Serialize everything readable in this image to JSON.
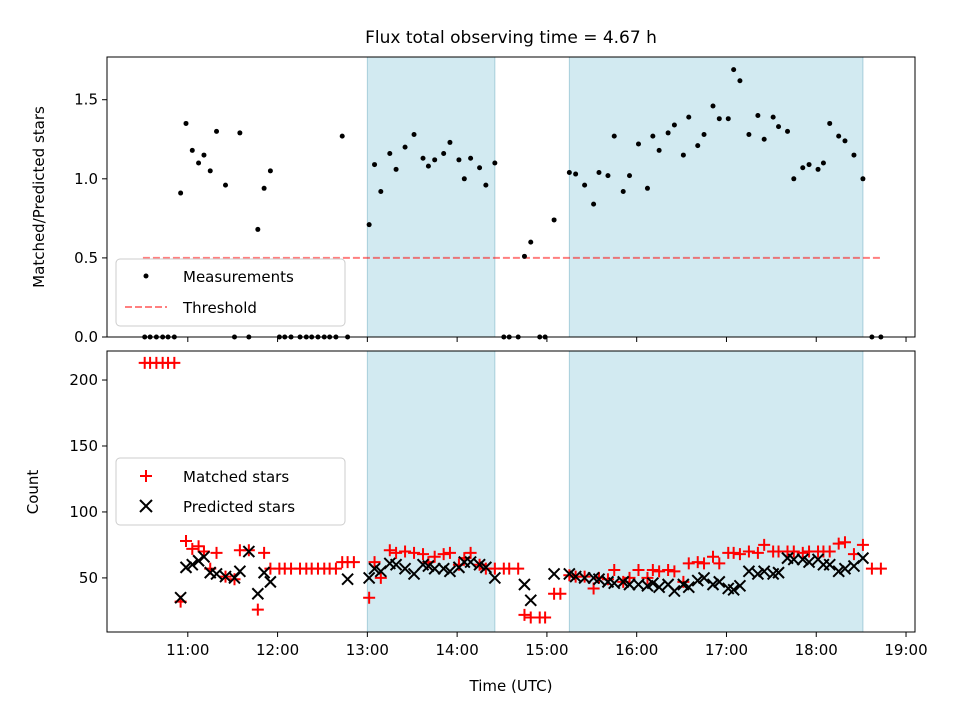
{
  "figure": {
    "title": "Flux total observing time = 4.67 h"
  },
  "colors": {
    "shade": "#add8e6",
    "measurement": "#000000",
    "threshold": "#ff0000",
    "matched": "#ff0000",
    "predicted": "#000000"
  },
  "chart_data": [
    {
      "type": "scatter",
      "panel": "top",
      "title": "Flux total observing time = 4.67 h",
      "xlabel": "",
      "ylabel": "Matched/Predicted stars",
      "xlim": [
        10.1,
        19.1
      ],
      "ylim": [
        0,
        1.77
      ],
      "yticks": [
        0.0,
        0.5,
        1.0,
        1.5
      ],
      "ytick_labels": [
        "0.0",
        "0.5",
        "1.0",
        "1.5"
      ],
      "xticks": [
        11,
        12,
        13,
        14,
        15,
        16,
        17,
        18,
        19
      ],
      "grid": false,
      "legend": {
        "position": "lower-left",
        "entries": [
          "Measurements",
          "Threshold"
        ]
      },
      "shaded_spans": [
        [
          13.0,
          14.42
        ],
        [
          15.25,
          18.52
        ]
      ],
      "threshold": {
        "name": "Threshold",
        "value": 0.5,
        "x_range": [
          10.5,
          18.72
        ]
      },
      "series": [
        {
          "name": "Measurements",
          "x": [
            10.52,
            10.58,
            10.65,
            10.72,
            10.78,
            10.85,
            10.92,
            10.98,
            11.05,
            11.12,
            11.18,
            11.25,
            11.32,
            11.42,
            11.52,
            11.58,
            11.68,
            11.78,
            11.85,
            11.92,
            12.02,
            12.08,
            12.15,
            12.25,
            12.32,
            12.38,
            12.45,
            12.52,
            12.58,
            12.65,
            12.72,
            12.78,
            13.02,
            13.08,
            13.15,
            13.25,
            13.32,
            13.42,
            13.52,
            13.62,
            13.68,
            13.75,
            13.85,
            13.92,
            14.02,
            14.08,
            14.15,
            14.25,
            14.32,
            14.42,
            14.52,
            14.58,
            14.68,
            14.75,
            14.82,
            14.92,
            14.98,
            15.08,
            15.25,
            15.32,
            15.42,
            15.52,
            15.58,
            15.68,
            15.75,
            15.85,
            15.92,
            16.02,
            16.12,
            16.18,
            16.25,
            16.35,
            16.42,
            16.52,
            16.58,
            16.68,
            16.75,
            16.85,
            16.92,
            17.02,
            17.08,
            17.15,
            17.25,
            17.35,
            17.42,
            17.52,
            17.58,
            17.68,
            17.75,
            17.85,
            17.92,
            18.02,
            18.08,
            18.15,
            18.25,
            18.32,
            18.42,
            18.52,
            18.62,
            18.72
          ],
          "y": [
            0,
            0,
            0,
            0,
            0,
            0,
            0.91,
            1.35,
            1.18,
            1.1,
            1.15,
            1.05,
            1.3,
            0.96,
            0,
            1.29,
            0,
            0.68,
            0.94,
            1.05,
            0,
            0,
            0,
            0,
            0,
            0,
            0,
            0,
            0,
            0,
            1.27,
            0,
            0.71,
            1.09,
            0.92,
            1.16,
            1.06,
            1.2,
            1.28,
            1.13,
            1.08,
            1.12,
            1.16,
            1.23,
            1.12,
            1.0,
            1.13,
            1.07,
            0.96,
            1.1,
            0,
            0,
            0,
            0.51,
            0.6,
            0,
            0,
            0.74,
            1.04,
            1.03,
            0.96,
            0.84,
            1.04,
            1.02,
            1.27,
            0.92,
            1.02,
            1.22,
            0.94,
            1.27,
            1.18,
            1.29,
            1.34,
            1.15,
            1.39,
            1.21,
            1.28,
            1.46,
            1.38,
            1.38,
            1.69,
            1.62,
            1.28,
            1.4,
            1.25,
            1.39,
            1.33,
            1.3,
            1.0,
            1.07,
            1.09,
            1.06,
            1.1,
            1.35,
            1.27,
            1.24,
            1.15,
            1.0,
            0,
            0
          ]
        }
      ]
    },
    {
      "type": "scatter",
      "panel": "bottom",
      "xlabel": "Time (UTC)",
      "ylabel": "Count",
      "xlim": [
        10.1,
        19.1
      ],
      "ylim": [
        9,
        222
      ],
      "yticks": [
        50,
        100,
        150,
        200
      ],
      "ytick_labels": [
        "50",
        "100",
        "150",
        "200"
      ],
      "xticks": [
        11,
        12,
        13,
        14,
        15,
        16,
        17,
        18,
        19
      ],
      "xtick_labels": [
        "11:00",
        "12:00",
        "13:00",
        "14:00",
        "15:00",
        "16:00",
        "17:00",
        "18:00",
        "19:00"
      ],
      "grid": false,
      "legend": {
        "position": "center-left",
        "entries": [
          "Matched stars",
          "Predicted stars"
        ]
      },
      "shaded_spans": [
        [
          13.0,
          14.42
        ],
        [
          15.25,
          18.52
        ]
      ],
      "series": [
        {
          "name": "Matched stars",
          "x": [
            10.52,
            10.58,
            10.65,
            10.72,
            10.78,
            10.85,
            10.92,
            10.98,
            11.05,
            11.12,
            11.18,
            11.25,
            11.32,
            11.42,
            11.52,
            11.58,
            11.68,
            11.78,
            11.85,
            11.92,
            12.02,
            12.08,
            12.15,
            12.25,
            12.32,
            12.38,
            12.45,
            12.52,
            12.58,
            12.65,
            12.72,
            12.78,
            12.85,
            13.02,
            13.08,
            13.15,
            13.25,
            13.32,
            13.42,
            13.52,
            13.62,
            13.68,
            13.75,
            13.85,
            13.92,
            14.02,
            14.08,
            14.15,
            14.25,
            14.32,
            14.42,
            14.52,
            14.58,
            14.68,
            14.75,
            14.82,
            14.92,
            14.98,
            15.08,
            15.15,
            15.25,
            15.32,
            15.42,
            15.52,
            15.58,
            15.68,
            15.75,
            15.85,
            15.92,
            16.02,
            16.12,
            16.18,
            16.25,
            16.35,
            16.42,
            16.52,
            16.58,
            16.68,
            16.75,
            16.85,
            16.92,
            17.02,
            17.08,
            17.15,
            17.25,
            17.35,
            17.42,
            17.52,
            17.58,
            17.68,
            17.75,
            17.85,
            17.92,
            18.02,
            18.08,
            18.15,
            18.25,
            18.32,
            18.42,
            18.52,
            18.62,
            18.72
          ],
          "y": [
            213,
            213,
            213,
            213,
            213,
            213,
            32,
            78,
            72,
            74,
            70,
            57,
            69,
            51,
            49,
            71,
            71,
            26,
            69,
            57,
            57,
            57,
            57,
            57,
            57,
            57,
            57,
            57,
            57,
            57,
            62,
            62,
            62,
            35,
            62,
            50,
            71,
            69,
            70,
            69,
            68,
            62,
            66,
            68,
            69,
            60,
            65,
            69,
            60,
            57,
            57,
            57,
            57,
            57,
            22,
            20,
            20,
            20,
            38,
            38,
            52,
            51,
            51,
            42,
            50,
            49,
            56,
            47,
            50,
            56,
            50,
            56,
            55,
            56,
            55,
            47,
            61,
            62,
            61,
            66,
            61,
            69,
            69,
            68,
            70,
            69,
            75,
            70,
            70,
            70,
            70,
            69,
            70,
            70,
            70,
            70,
            76,
            77,
            68,
            75,
            57,
            57
          ]
        },
        {
          "name": "Predicted stars",
          "x": [
            10.92,
            10.98,
            11.05,
            11.12,
            11.18,
            11.25,
            11.32,
            11.42,
            11.52,
            11.58,
            11.68,
            11.78,
            11.85,
            11.92,
            12.78,
            13.02,
            13.08,
            13.15,
            13.25,
            13.32,
            13.42,
            13.52,
            13.62,
            13.68,
            13.75,
            13.85,
            13.92,
            14.02,
            14.08,
            14.15,
            14.25,
            14.32,
            14.42,
            14.75,
            14.82,
            15.08,
            15.25,
            15.32,
            15.42,
            15.52,
            15.58,
            15.68,
            15.75,
            15.85,
            15.92,
            16.02,
            16.12,
            16.18,
            16.25,
            16.35,
            16.42,
            16.52,
            16.58,
            16.68,
            16.75,
            16.85,
            16.92,
            17.02,
            17.08,
            17.15,
            17.25,
            17.35,
            17.42,
            17.52,
            17.58,
            17.68,
            17.75,
            17.85,
            17.92,
            18.02,
            18.08,
            18.15,
            18.25,
            18.32,
            18.42,
            18.52
          ],
          "y": [
            35,
            58,
            60,
            63,
            66,
            54,
            53,
            51,
            50,
            55,
            70,
            38,
            54,
            47,
            49,
            50,
            57,
            55,
            61,
            60,
            57,
            53,
            60,
            59,
            57,
            57,
            55,
            58,
            62,
            62,
            60,
            58,
            50,
            45,
            33,
            53,
            53,
            51,
            50,
            50,
            49,
            47,
            46,
            47,
            45,
            45,
            44,
            46,
            43,
            45,
            40,
            45,
            43,
            48,
            50,
            45,
            47,
            42,
            41,
            44,
            55,
            53,
            55,
            53,
            54,
            65,
            64,
            64,
            62,
            64,
            60,
            60,
            55,
            57,
            59,
            65
          ]
        }
      ]
    }
  ]
}
